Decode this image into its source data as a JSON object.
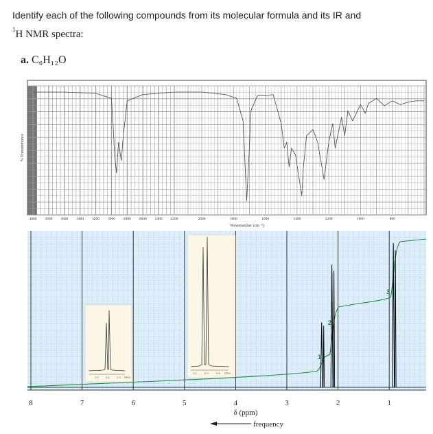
{
  "question": {
    "line1": "Identify each of the following compounds from its molecular formula and its IR and",
    "line2_sup": "1",
    "line2": "H NMR spectra:",
    "part_label": "a.",
    "formula": "C₆H₁₂O"
  },
  "chart_data": [
    {
      "type": "line",
      "kind": "IR spectrum",
      "ylabel": "% Transmittance",
      "xlabel": "Wavenumber (cm⁻¹)",
      "x_ticks": [
        "4000",
        "3800",
        "3600",
        "3400",
        "3200",
        "3000",
        "2800",
        "2600",
        "2400",
        "2200",
        "2000",
        "1800",
        "1600",
        "1400",
        "1200",
        "1000",
        "800"
      ],
      "xlim": [
        4000,
        600
      ],
      "ylim": [
        0,
        100
      ],
      "x": [
        4000,
        3600,
        3200,
        3000,
        2980,
        2960,
        2935,
        2910,
        2875,
        2850,
        2800,
        2600,
        2200,
        2000,
        1850,
        1780,
        1740,
        1717,
        1700,
        1690,
        1650,
        1600,
        1550,
        1500,
        1480,
        1465,
        1450,
        1435,
        1410,
        1380,
        1370,
        1360,
        1340,
        1300,
        1270,
        1250,
        1230,
        1200,
        1175,
        1160,
        1120,
        1100,
        1080,
        1050,
        1000,
        970,
        950,
        900,
        850,
        800,
        750,
        700,
        650,
        600
      ],
      "y": [
        95,
        95,
        94,
        90,
        70,
        45,
        30,
        55,
        40,
        60,
        88,
        93,
        95,
        95,
        93,
        90,
        72,
        8,
        50,
        80,
        92,
        92,
        93,
        70,
        50,
        55,
        35,
        50,
        45,
        20,
        12,
        35,
        60,
        65,
        55,
        40,
        25,
        55,
        70,
        50,
        75,
        60,
        80,
        72,
        85,
        78,
        86,
        90,
        84,
        88,
        85,
        87,
        88,
        88
      ]
    },
    {
      "type": "line",
      "kind": "1H NMR spectrum",
      "xlabel": "δ (ppm)",
      "arrow_label": "frequency",
      "x_ticks": [
        "8",
        "7",
        "6",
        "5",
        "4",
        "3",
        "2",
        "1"
      ],
      "xlim": [
        8.1,
        0
      ],
      "peaks": [
        {
          "ppm": 2.32,
          "height": 0.45,
          "label": "1"
        },
        {
          "ppm": 2.12,
          "height": 0.85,
          "label": "2"
        },
        {
          "ppm": 0.92,
          "height": 1.0,
          "label": "3"
        }
      ],
      "integration_labels": [
        "1",
        "2",
        "3"
      ],
      "insets": [
        {
          "axis_label": "PPM",
          "ticks": [
            "2.5",
            "2.4",
            "2.3"
          ]
        },
        {
          "axis_label": "PPM",
          "ticks": [
            "1.0",
            "0.9",
            "0.8"
          ]
        }
      ]
    }
  ]
}
